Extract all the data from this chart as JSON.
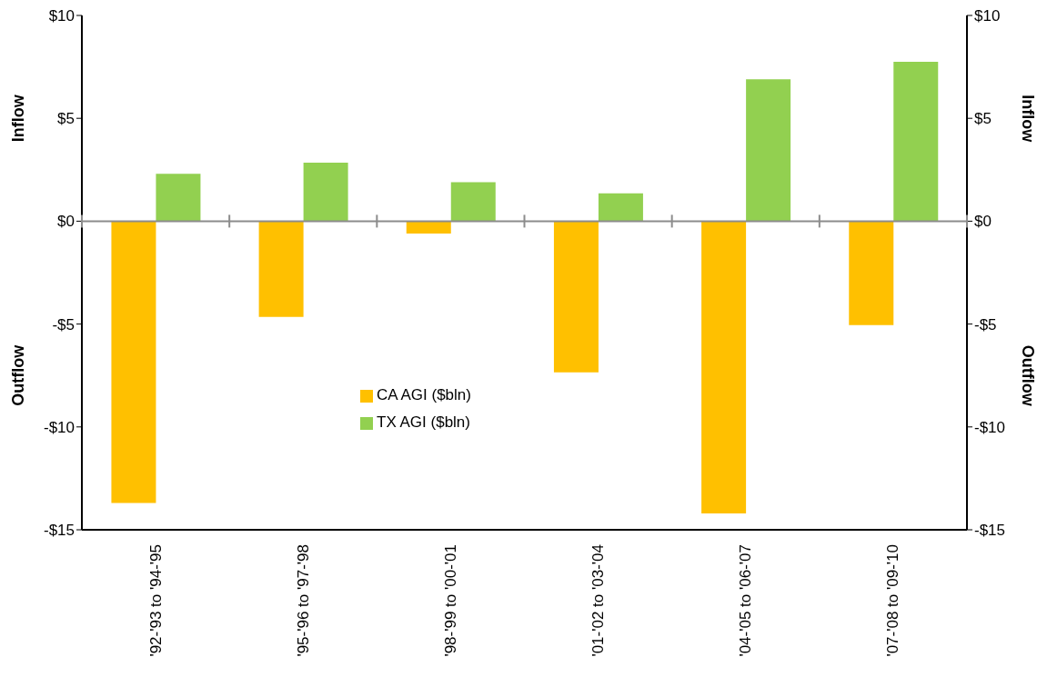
{
  "chart_data": {
    "type": "bar",
    "categories": [
      "'92-'93 to '94-'95",
      "'95-'96 to '97-'98",
      "'98-'99 to '00-'01",
      "'01-'02 to '03-'04",
      "'04-'05 to '06-'07",
      "'07-'08 to '09-'10"
    ],
    "series": [
      {
        "name": "CA AGI ($bln)",
        "color": "#ffc000",
        "values": [
          -13.7,
          -4.65,
          -0.6,
          -7.35,
          -14.2,
          -5.05
        ]
      },
      {
        "name": "TX AGI ($bln)",
        "color": "#92d050",
        "values": [
          2.3,
          2.85,
          1.9,
          1.35,
          6.9,
          7.75
        ]
      }
    ],
    "ylim": [
      -15,
      10
    ],
    "yticks": [
      {
        "value": -15,
        "label": "-$15"
      },
      {
        "value": -10,
        "label": "-$10"
      },
      {
        "value": -5,
        "label": "-$5"
      },
      {
        "value": 0,
        "label": "$0"
      },
      {
        "value": 5,
        "label": "$5"
      },
      {
        "value": 10,
        "label": "$10"
      }
    ],
    "y2lim": [
      -15,
      10
    ],
    "y2ticks": [
      {
        "value": -15,
        "label": "-$15"
      },
      {
        "value": -10,
        "label": "-$10"
      },
      {
        "value": -5,
        "label": "-$5"
      },
      {
        "value": 0,
        "label": "$0"
      },
      {
        "value": 5,
        "label": "$5"
      },
      {
        "value": 10,
        "label": "$10"
      }
    ],
    "annotations": [
      "Inflow",
      "Outflow",
      "Inflow",
      "Outflow"
    ],
    "ref_lines": [
      {
        "axis": "y",
        "value": 0,
        "color": "#8c8c8c"
      }
    ],
    "legend": "center",
    "grid": false
  }
}
